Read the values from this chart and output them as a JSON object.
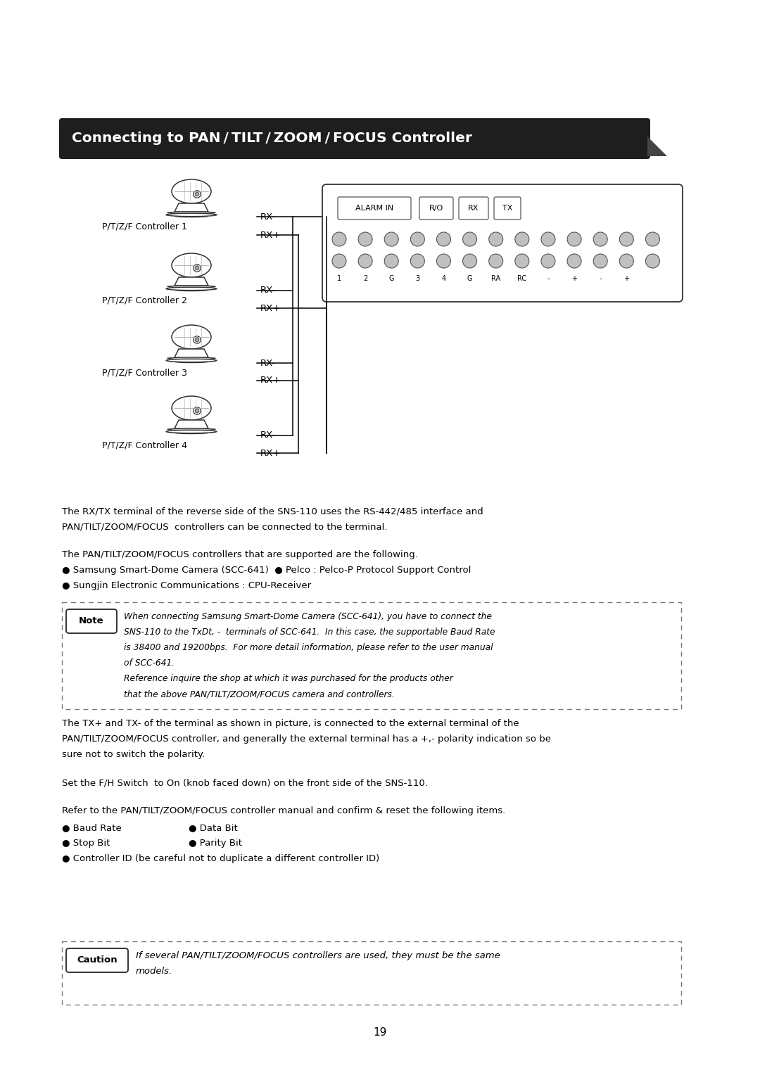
{
  "title": "Connecting to PAN / TILT / ZOOM / FOCUS Controller",
  "title_bg": "#1e1e1e",
  "title_color": "#ffffff",
  "page_number": "19",
  "controllers": [
    "P/T/Z/F Controller 1",
    "P/T/Z/F Controller 2",
    "P/T/Z/F Controller 3",
    "P/T/Z/F Controller 4"
  ],
  "pin_labels": [
    "1",
    "2",
    "G",
    "3",
    "4",
    "G",
    "RA",
    "RC",
    "-",
    "+",
    "-",
    "+"
  ],
  "body_text1_line1": "The RX/TX terminal of the reverse side of the SNS-110 uses the RS-442/485 interface and",
  "body_text1_line2": "PAN/TILT/ZOOM/FOCUS  controllers can be connected to the terminal.",
  "body_text1_line3": "The PAN/TILT/ZOOM/FOCUS controllers that are supported are the following.",
  "body_text1_line4": "● Samsung Smart-Dome Camera (SCC-641)  ● Pelco : Pelco-P Protocol Support Control",
  "body_text1_line5": "● Sungjin Electronic Communications : CPU-Receiver",
  "note_label": "Note",
  "note_line1": "When connecting Samsung Smart-Dome Camera (SCC-641), you have to connect the",
  "note_line2": "SNS-110 to the TxDt, -  terminals of SCC-641.  In this case, the supportable Baud Rate",
  "note_line3": "is 38400 and 19200bps.  For more detail information, please refer to the user manual",
  "note_line4": "of SCC-641.",
  "note_line5": "Reference inquire the shop at which it was purchased for the products other",
  "note_line6": "that the above PAN/TILT/ZOOM/FOCUS camera and controllers.",
  "body2_line1": "The TX+ and TX- of the terminal as shown in picture, is connected to the external terminal of the",
  "body2_line2": "PAN/TILT/ZOOM/FOCUS controller, and generally the external terminal has a +,- polarity indication so be",
  "body2_line3": "sure not to switch the polarity.",
  "body2_line4": "Set the F/H Switch  to On (knob faced down) on the front side of the SNS-110.",
  "body2_line5": "Refer to the PAN/TILT/ZOOM/FOCUS controller manual and confirm & reset the following items.",
  "bullet1a": "● Baud Rate",
  "bullet1b": "● Data Bit",
  "bullet2a": "● Stop Bit",
  "bullet2b": "● Parity Bit",
  "bullet3": "● Controller ID (be careful not to duplicate a different controller ID)",
  "caution_label": "Caution",
  "caution_line1": "If several PAN/TILT/ZOOM/FOCUS controllers are used, they must be the same",
  "caution_line2": "models."
}
